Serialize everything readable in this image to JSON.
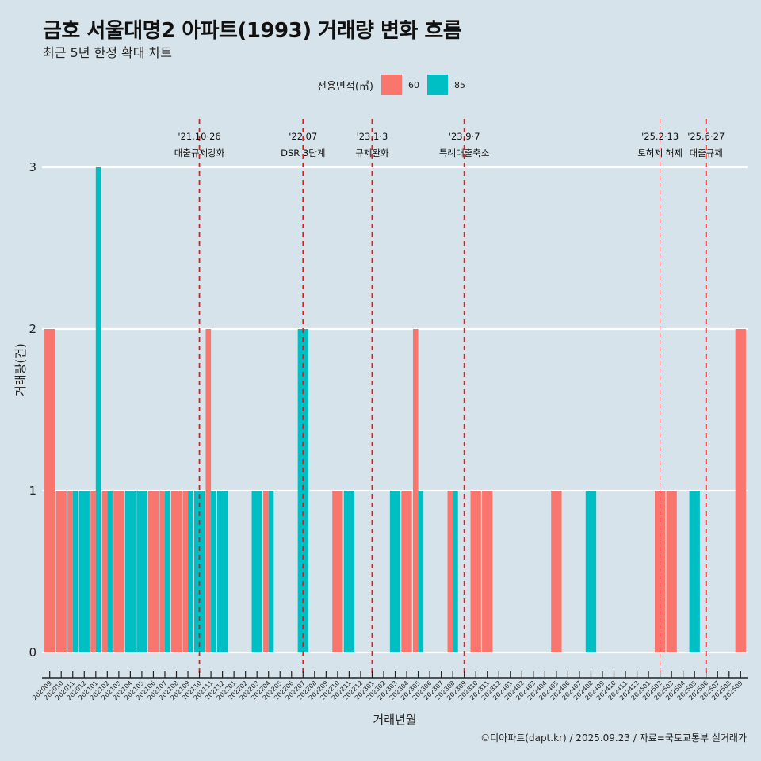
{
  "header": {
    "title": "금호 서울대명2 아파트(1993) 거래량 변화 흐름",
    "subtitle": "최근 5년 한정 확대 차트"
  },
  "legend": {
    "title": "전용면적(㎡)",
    "items": [
      {
        "label": "60",
        "color": "#f8766d"
      },
      {
        "label": "85",
        "color": "#00bfc4"
      }
    ]
  },
  "footer": "©디아파트(dapt.kr) / 2025.09.23 / 자료=국토교통부 실거래가",
  "chart_data": {
    "type": "bar",
    "title": "금호 서울대명2 아파트(1993) 거래량 변화 흐름",
    "subtitle": "최근 5년 한정 확대 차트",
    "xlabel": "거래년월",
    "ylabel": "거래량(건)",
    "ylim": [
      0,
      3
    ],
    "yticks": [
      0,
      1,
      2,
      3
    ],
    "grid": true,
    "legend_position": "top",
    "bar_mode": "dodge",
    "categories": [
      "202009",
      "202010",
      "202011",
      "202012",
      "202101",
      "202102",
      "202103",
      "202104",
      "202105",
      "202106",
      "202107",
      "202108",
      "202109",
      "202110",
      "202111",
      "202112",
      "202201",
      "202202",
      "202203",
      "202204",
      "202205",
      "202206",
      "202207",
      "202208",
      "202209",
      "202210",
      "202211",
      "202212",
      "202301",
      "202302",
      "202303",
      "202304",
      "202305",
      "202306",
      "202307",
      "202308",
      "202309",
      "202310",
      "202311",
      "202312",
      "202401",
      "202402",
      "202403",
      "202404",
      "202405",
      "202406",
      "202407",
      "202408",
      "202409",
      "202410",
      "202411",
      "202412",
      "202501",
      "202502",
      "202503",
      "202504",
      "202505",
      "202506",
      "202507",
      "202508",
      "202509"
    ],
    "series": [
      {
        "name": "60",
        "color": "#f8766d",
        "values": [
          2,
          1,
          1,
          0,
          1,
          1,
          1,
          0,
          0,
          1,
          1,
          1,
          1,
          0,
          2,
          0,
          0,
          0,
          0,
          1,
          0,
          0,
          0,
          0,
          0,
          1,
          0,
          0,
          0,
          0,
          0,
          1,
          2,
          0,
          0,
          1,
          0,
          1,
          1,
          0,
          0,
          0,
          0,
          0,
          1,
          0,
          0,
          0,
          0,
          0,
          0,
          0,
          0,
          1,
          1,
          0,
          0,
          0,
          0,
          0,
          2
        ]
      },
      {
        "name": "85",
        "color": "#00bfc4",
        "values": [
          0,
          0,
          1,
          1,
          3,
          1,
          0,
          1,
          1,
          0,
          1,
          0,
          1,
          1,
          1,
          1,
          0,
          0,
          1,
          1,
          0,
          0,
          2,
          0,
          0,
          0,
          1,
          0,
          0,
          0,
          1,
          0,
          1,
          0,
          0,
          1,
          0,
          0,
          0,
          0,
          0,
          0,
          0,
          0,
          0,
          0,
          0,
          1,
          0,
          0,
          0,
          0,
          0,
          0,
          0,
          0,
          1,
          0,
          0,
          0,
          0
        ]
      }
    ],
    "annotations": [
      {
        "month": "202110",
        "date": "'21.10·26",
        "label": "대출규제강화",
        "style": "dashed"
      },
      {
        "month": "202207",
        "date": "'22.07",
        "label": "DSR 3단계",
        "style": "dashed"
      },
      {
        "month": "202301",
        "date": "'23.1·3",
        "label": "규제완화",
        "style": "dashed"
      },
      {
        "month": "202309",
        "date": "'23.9·7",
        "label": "특례대출축소",
        "style": "dashed"
      },
      {
        "month": "202502",
        "date": "'25.2·13",
        "label": "토허제 해제",
        "style": "dashed-thin"
      },
      {
        "month": "202506",
        "date": "'25.6·27",
        "label": "대출규제",
        "style": "dashed"
      }
    ],
    "annotation_color": "#e41a1c"
  }
}
